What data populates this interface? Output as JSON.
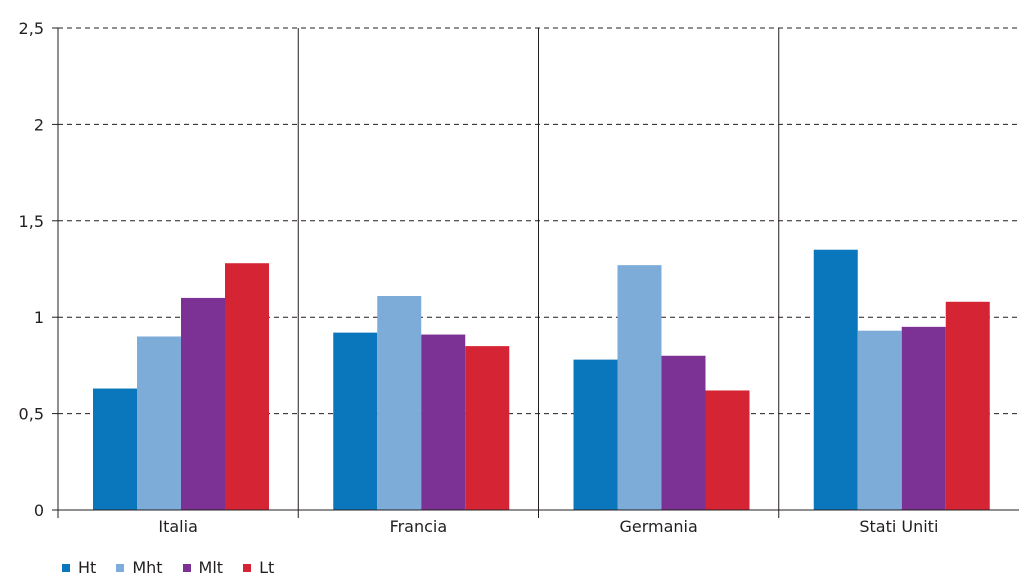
{
  "chart_data": {
    "type": "bar",
    "categories": [
      "Italia",
      "Francia",
      "Germania",
      "Stati Uniti"
    ],
    "series": [
      {
        "name": "Ht",
        "color": "#0a77bd",
        "values": [
          0.63,
          0.92,
          0.78,
          1.35
        ]
      },
      {
        "name": "Mht",
        "color": "#7eacd8",
        "values": [
          0.9,
          1.11,
          1.27,
          0.93
        ]
      },
      {
        "name": "Mlt",
        "color": "#7b3294",
        "values": [
          1.1,
          0.91,
          0.8,
          0.95
        ]
      },
      {
        "name": "Lt",
        "color": "#d52534",
        "values": [
          1.28,
          0.85,
          0.62,
          1.08
        ]
      }
    ],
    "y_ticks": [
      "0",
      "0,5",
      "1",
      "1,5",
      "2",
      "2,5"
    ],
    "ylim": [
      0,
      2.5
    ],
    "grid": "horizontal dashed",
    "group_separators": true,
    "legend_position": "bottom-left",
    "title": "",
    "xlabel": "",
    "ylabel": ""
  }
}
